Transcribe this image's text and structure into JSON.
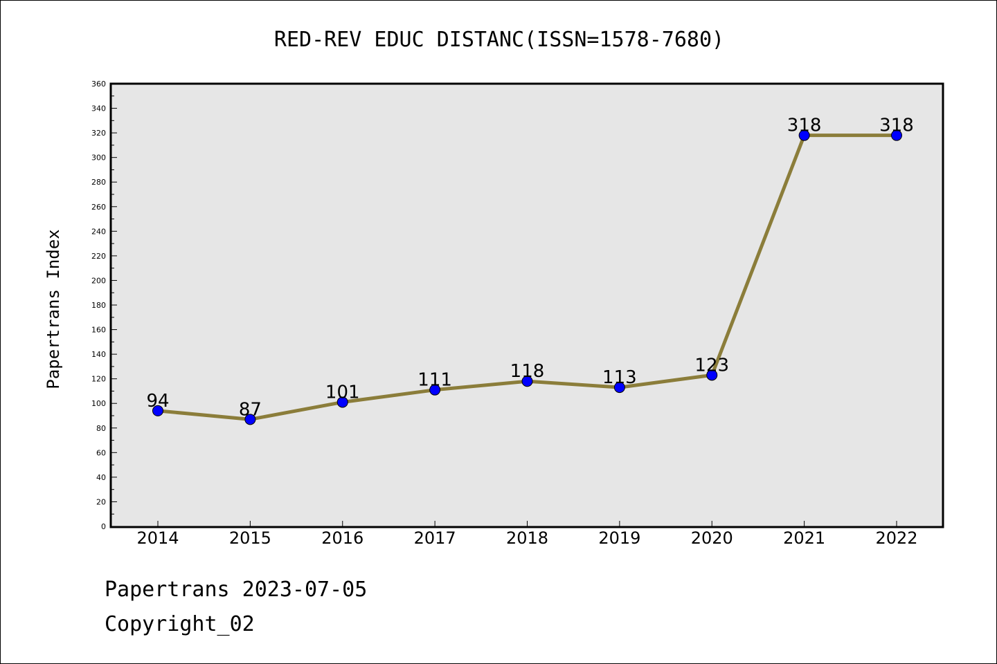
{
  "chart_data": {
    "type": "line",
    "title": "RED-REV EDUC DISTANC(ISSN=1578-7680)",
    "xlabel": "",
    "ylabel": "Papertrans Index",
    "categories": [
      "2014",
      "2015",
      "2016",
      "2017",
      "2018",
      "2019",
      "2020",
      "2021",
      "2022"
    ],
    "series": [
      {
        "values": [
          94,
          87,
          101,
          111,
          118,
          113,
          123,
          318,
          318
        ]
      }
    ],
    "ylim": [
      0,
      360
    ],
    "yticks": [
      0,
      20,
      40,
      60,
      80,
      100,
      120,
      140,
      160,
      180,
      200,
      220,
      240,
      260,
      280,
      300,
      320,
      340,
      360
    ],
    "grid": false,
    "data_labels": true
  },
  "footer": {
    "date_line": "Papertrans 2023-07-05",
    "copyright_line": "Copyright_02"
  },
  "colors": {
    "line": "#8b7d3a",
    "marker_fill": "#0000ff",
    "plot_background": "#e6e6e6",
    "axes_frame": "#000000"
  }
}
